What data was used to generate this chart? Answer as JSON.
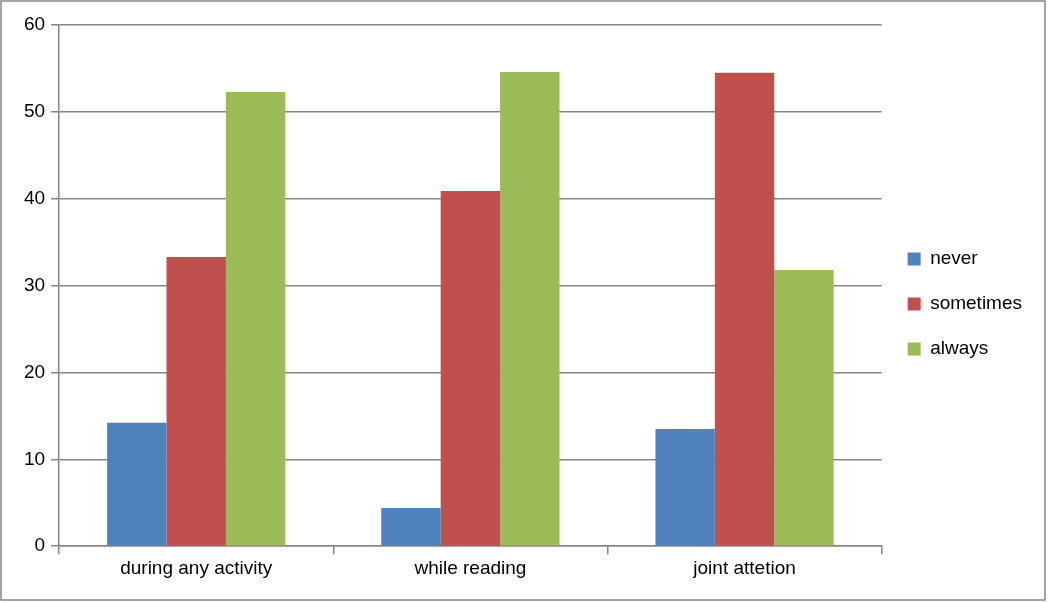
{
  "chart_data": {
    "type": "bar",
    "categories": [
      "during any activity",
      "while reading",
      "joint attetion"
    ],
    "series": [
      {
        "name": "never",
        "color": "#4f81bd",
        "values": [
          14.2,
          4.4,
          13.5
        ]
      },
      {
        "name": "sometimes",
        "color": "#c0504d",
        "values": [
          33.3,
          40.9,
          54.5
        ]
      },
      {
        "name": "always",
        "color": "#9bbb59",
        "values": [
          52.3,
          54.6,
          31.8
        ]
      }
    ],
    "ylim": [
      0,
      60
    ],
    "yticks": [
      0,
      10,
      20,
      30,
      40,
      50,
      60
    ],
    "grid": "y",
    "legend": "right"
  }
}
